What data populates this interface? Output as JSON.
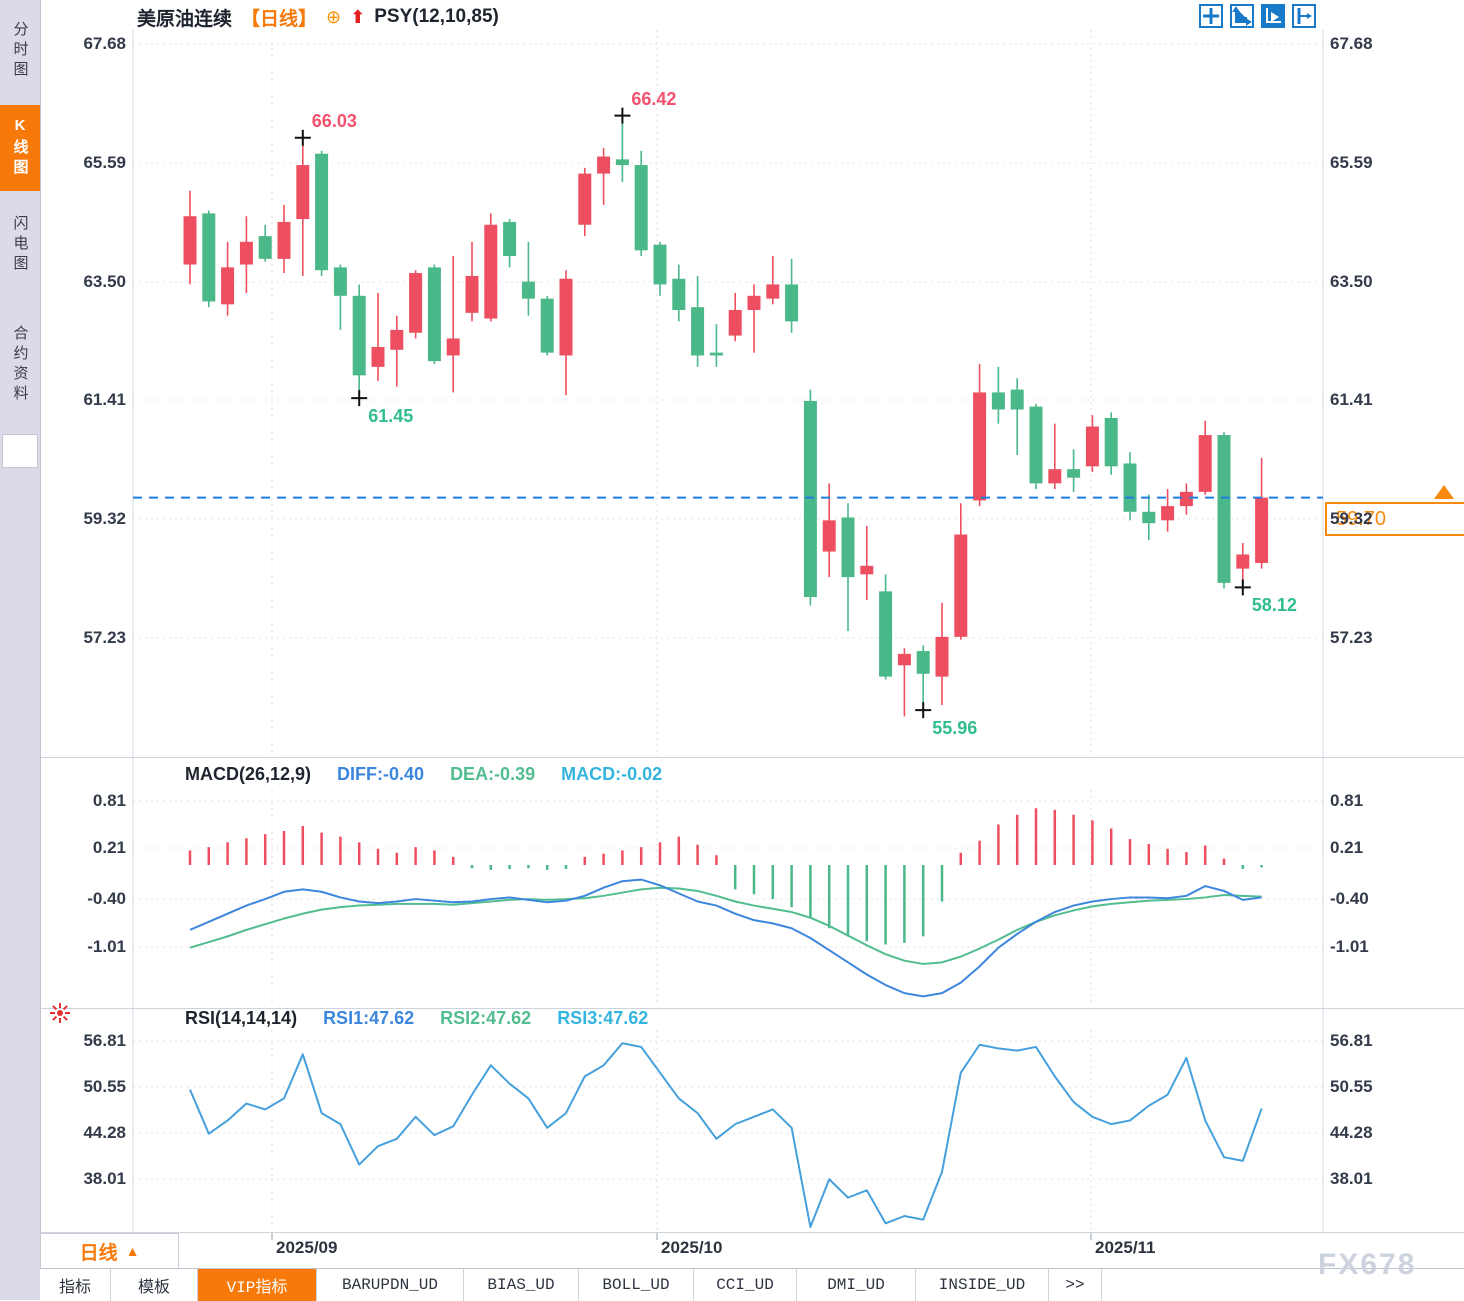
{
  "sidebar": {
    "items": [
      {
        "label": "分时图",
        "active": false
      },
      {
        "label": "K线图",
        "active": true
      },
      {
        "label": "闪电图",
        "active": false
      },
      {
        "label": "合约资料",
        "active": false
      }
    ]
  },
  "header": {
    "symbol": "美原油连续",
    "period_tag": "【日线】",
    "circle_icon": "⊕",
    "arrow_icon": "⬆",
    "overlay_indicator": "PSY(12,10,85)"
  },
  "toolbar": {
    "icons": [
      "pan-crosshair-icon",
      "axis-scale-icon",
      "axis-play-icon",
      "shift-right-icon"
    ],
    "active_index": 2
  },
  "price_tag": {
    "value": "59.70"
  },
  "period_selector": {
    "label": "日线",
    "arrow": "▲"
  },
  "tabs": {
    "items": [
      "指标",
      "模板",
      "VIP指标",
      "BARUPDN_UD",
      "BIAS_UD",
      "BOLL_UD",
      "CCI_UD",
      "DMI_UD",
      "INSIDE_UD",
      ">>"
    ],
    "active_index": 2
  },
  "watermark": "FX678",
  "colors": {
    "up": "#ee4f60",
    "down": "#4bb889",
    "diff_line": "#3c87dd",
    "dea_line": "#52bd8f",
    "macd_label": "#33b5e0",
    "rsi_line": "#45a0dc",
    "dashed_price_line": "#1d7de0",
    "accent_orange": "#f7790a",
    "annotation_high": "#f4516c",
    "annotation_low": "#2fbd8d",
    "marker_cross": "#111111"
  },
  "chart_data": {
    "type": "candlestick",
    "title": "美原油连续 日线",
    "x_axis": {
      "labels": [
        "2025/09",
        "2025/10",
        "2025/11"
      ],
      "gridline_values": [
        "2025/09",
        "2025/10",
        "2025/11"
      ]
    },
    "main_panel": {
      "y_axis_labels": [
        "67.68",
        "65.59",
        "63.50",
        "61.41",
        "59.32",
        "57.23"
      ],
      "y_axis_values": [
        67.68,
        65.59,
        63.5,
        61.41,
        59.32,
        57.23
      ],
      "current_price": 59.7,
      "candles_ohlc": [
        [
          63.8,
          65.1,
          63.45,
          64.65
        ],
        [
          64.7,
          64.75,
          63.05,
          63.15
        ],
        [
          63.1,
          64.2,
          62.9,
          63.75
        ],
        [
          63.8,
          64.65,
          63.3,
          64.2
        ],
        [
          64.3,
          64.5,
          63.85,
          63.9
        ],
        [
          63.9,
          64.85,
          63.65,
          64.55
        ],
        [
          64.6,
          66.03,
          63.6,
          65.55
        ],
        [
          65.75,
          65.8,
          63.6,
          63.7
        ],
        [
          63.75,
          63.8,
          62.65,
          63.25
        ],
        [
          63.25,
          63.45,
          61.45,
          61.85
        ],
        [
          62.0,
          63.3,
          61.75,
          62.35
        ],
        [
          62.3,
          62.9,
          61.65,
          62.65
        ],
        [
          62.6,
          63.7,
          62.5,
          63.65
        ],
        [
          63.75,
          63.8,
          62.05,
          62.1
        ],
        [
          62.2,
          63.95,
          61.55,
          62.5
        ],
        [
          62.95,
          64.2,
          62.8,
          63.6
        ],
        [
          62.85,
          64.7,
          62.8,
          64.5
        ],
        [
          64.55,
          64.6,
          63.75,
          63.95
        ],
        [
          63.5,
          64.2,
          62.9,
          63.2
        ],
        [
          63.2,
          63.25,
          62.2,
          62.25
        ],
        [
          62.2,
          63.7,
          61.5,
          63.55
        ],
        [
          64.5,
          65.5,
          64.3,
          65.4
        ],
        [
          65.4,
          65.85,
          64.85,
          65.7
        ],
        [
          65.65,
          66.42,
          65.25,
          65.55
        ],
        [
          65.55,
          65.8,
          63.95,
          64.05
        ],
        [
          64.15,
          64.2,
          63.25,
          63.45
        ],
        [
          63.55,
          63.8,
          62.8,
          63.0
        ],
        [
          63.05,
          63.6,
          62.0,
          62.2
        ],
        [
          62.25,
          62.75,
          62.0,
          62.2
        ],
        [
          62.55,
          63.3,
          62.45,
          63.0
        ],
        [
          63.0,
          63.45,
          62.25,
          63.25
        ],
        [
          63.2,
          63.95,
          63.1,
          63.45
        ],
        [
          63.45,
          63.9,
          62.6,
          62.8
        ],
        [
          61.4,
          61.6,
          57.8,
          57.95
        ],
        [
          58.75,
          59.95,
          58.3,
          59.3
        ],
        [
          59.35,
          59.6,
          57.35,
          58.3
        ],
        [
          58.35,
          59.2,
          57.9,
          58.5
        ],
        [
          58.05,
          58.35,
          56.5,
          56.55
        ],
        [
          56.75,
          57.05,
          55.85,
          56.95
        ],
        [
          57.0,
          57.1,
          55.96,
          56.6
        ],
        [
          56.55,
          57.85,
          56.05,
          57.25
        ],
        [
          57.25,
          59.6,
          57.2,
          59.05
        ],
        [
          59.65,
          62.05,
          59.55,
          61.55
        ],
        [
          61.55,
          62.0,
          61.0,
          61.25
        ],
        [
          61.6,
          61.8,
          60.45,
          61.25
        ],
        [
          61.3,
          61.35,
          59.85,
          59.95
        ],
        [
          59.95,
          61.0,
          59.85,
          60.2
        ],
        [
          60.2,
          60.55,
          59.8,
          60.05
        ],
        [
          60.25,
          61.15,
          60.15,
          60.95
        ],
        [
          61.1,
          61.2,
          60.1,
          60.25
        ],
        [
          60.3,
          60.5,
          59.3,
          59.45
        ],
        [
          59.45,
          59.75,
          58.95,
          59.25
        ],
        [
          59.3,
          59.85,
          59.1,
          59.55
        ],
        [
          59.55,
          59.95,
          59.4,
          59.8
        ],
        [
          59.8,
          61.05,
          59.75,
          60.8
        ],
        [
          60.8,
          60.85,
          58.1,
          58.2
        ],
        [
          58.45,
          58.9,
          58.12,
          58.7
        ],
        [
          58.55,
          60.4,
          58.45,
          59.7
        ]
      ],
      "annotations": [
        {
          "index": 6,
          "type": "high",
          "text": "66.03",
          "value": 66.03
        },
        {
          "index": 23,
          "type": "high",
          "text": "66.42",
          "value": 66.42
        },
        {
          "index": 9,
          "type": "low",
          "text": "61.45",
          "value": 61.45
        },
        {
          "index": 39,
          "type": "low",
          "text": "55.96",
          "value": 55.96
        },
        {
          "index": 56,
          "type": "low",
          "text": "58.12",
          "value": 58.12
        }
      ]
    },
    "macd_panel": {
      "title": "MACD(26,12,9)",
      "legend": [
        {
          "text": "DIFF:-0.40",
          "color_key": "diff_line"
        },
        {
          "text": "DEA:-0.39",
          "color_key": "dea_line"
        },
        {
          "text": "MACD:-0.02",
          "color_key": "macd_label"
        }
      ],
      "y_axis_labels": [
        "0.81",
        "0.21",
        "-0.40",
        "-1.01"
      ],
      "y_axis_values": [
        0.81,
        0.21,
        -0.4,
        -1.01
      ],
      "histogram": [
        0.18,
        0.22,
        0.28,
        0.33,
        0.38,
        0.42,
        0.48,
        0.4,
        0.35,
        0.28,
        0.2,
        0.15,
        0.22,
        0.18,
        0.1,
        -0.04,
        -0.06,
        -0.05,
        -0.04,
        -0.06,
        -0.05,
        0.1,
        0.14,
        0.18,
        0.22,
        0.28,
        0.35,
        0.25,
        0.12,
        -0.3,
        -0.36,
        -0.42,
        -0.52,
        -0.66,
        -0.78,
        -0.88,
        -0.94,
        -0.98,
        -0.96,
        -0.88,
        -0.45,
        0.15,
        0.3,
        0.5,
        0.62,
        0.7,
        0.68,
        0.62,
        0.55,
        0.45,
        0.32,
        0.26,
        0.2,
        0.16,
        0.24,
        0.08,
        -0.05,
        -0.03
      ],
      "diff": [
        -0.8,
        -0.7,
        -0.6,
        -0.5,
        -0.42,
        -0.33,
        -0.3,
        -0.33,
        -0.4,
        -0.45,
        -0.47,
        -0.45,
        -0.42,
        -0.44,
        -0.46,
        -0.45,
        -0.42,
        -0.4,
        -0.43,
        -0.46,
        -0.44,
        -0.38,
        -0.28,
        -0.2,
        -0.18,
        -0.25,
        -0.35,
        -0.45,
        -0.5,
        -0.6,
        -0.68,
        -0.72,
        -0.78,
        -0.9,
        -1.05,
        -1.2,
        -1.35,
        -1.48,
        -1.58,
        -1.62,
        -1.58,
        -1.45,
        -1.25,
        -1.02,
        -0.85,
        -0.7,
        -0.58,
        -0.5,
        -0.45,
        -0.42,
        -0.4,
        -0.4,
        -0.41,
        -0.38,
        -0.26,
        -0.32,
        -0.43,
        -0.4
      ],
      "dea": [
        -1.02,
        -0.95,
        -0.88,
        -0.8,
        -0.73,
        -0.66,
        -0.6,
        -0.55,
        -0.52,
        -0.5,
        -0.49,
        -0.48,
        -0.48,
        -0.48,
        -0.49,
        -0.47,
        -0.45,
        -0.43,
        -0.42,
        -0.43,
        -0.42,
        -0.41,
        -0.38,
        -0.34,
        -0.3,
        -0.28,
        -0.29,
        -0.32,
        -0.38,
        -0.45,
        -0.5,
        -0.54,
        -0.58,
        -0.65,
        -0.75,
        -0.87,
        -0.99,
        -1.1,
        -1.18,
        -1.22,
        -1.2,
        -1.13,
        -1.03,
        -0.92,
        -0.8,
        -0.7,
        -0.62,
        -0.56,
        -0.51,
        -0.48,
        -0.46,
        -0.44,
        -0.43,
        -0.42,
        -0.4,
        -0.37,
        -0.38,
        -0.39
      ]
    },
    "rsi_panel": {
      "title": "RSI(14,14,14)",
      "legend": [
        {
          "text": "RSI1:47.62",
          "color_key": "diff_line"
        },
        {
          "text": "RSI2:47.62",
          "color_key": "dea_line"
        },
        {
          "text": "RSI3:47.62",
          "color_key": "macd_label"
        }
      ],
      "y_axis_labels": [
        "56.81",
        "50.55",
        "44.28",
        "38.01"
      ],
      "y_axis_values": [
        56.81,
        50.55,
        44.28,
        38.01
      ],
      "values": [
        50.2,
        44.2,
        46.0,
        48.3,
        47.5,
        49.0,
        55.0,
        47.0,
        45.5,
        40.0,
        42.5,
        43.5,
        46.5,
        44.0,
        45.2,
        49.5,
        53.5,
        51.0,
        49.0,
        45.0,
        47.0,
        52.0,
        53.5,
        56.5,
        56.0,
        52.5,
        49.0,
        47.0,
        43.5,
        45.5,
        46.5,
        47.5,
        45.0,
        31.5,
        38.0,
        35.5,
        36.5,
        32.0,
        33.0,
        32.5,
        39.0,
        52.5,
        56.3,
        55.8,
        55.5,
        56.0,
        52.0,
        48.5,
        46.5,
        45.5,
        46.0,
        48.0,
        49.5,
        54.5,
        46.0,
        41.0,
        40.5,
        47.62
      ]
    }
  }
}
